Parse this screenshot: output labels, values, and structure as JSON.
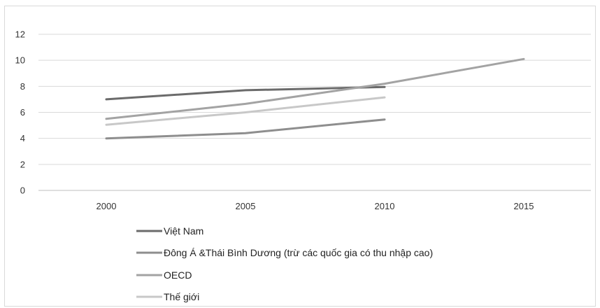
{
  "chart_data": {
    "type": "line",
    "x": [
      "2000",
      "2005",
      "2010",
      "2015"
    ],
    "ylim": [
      0,
      12
    ],
    "yticks": [
      0,
      2,
      4,
      6,
      8,
      10,
      12
    ],
    "grid": true,
    "legend": "bottom-left",
    "series": [
      {
        "name": "Việt Nam",
        "color": "#6b6b6b",
        "values": [
          7.0,
          7.7,
          7.95,
          null
        ]
      },
      {
        "name": "Đông Á &Thái Bình Dương (trừ các quốc gia có thu nhập cao)",
        "color": "#8e8e8e",
        "values": [
          4.0,
          4.4,
          5.45,
          null
        ]
      },
      {
        "name": "OECD",
        "color": "#a3a3a3",
        "values": [
          5.5,
          6.65,
          8.2,
          10.1
        ]
      },
      {
        "name": "Thế giới",
        "color": "#c8c8c8",
        "values": [
          5.05,
          6.0,
          7.15,
          null
        ]
      }
    ]
  }
}
